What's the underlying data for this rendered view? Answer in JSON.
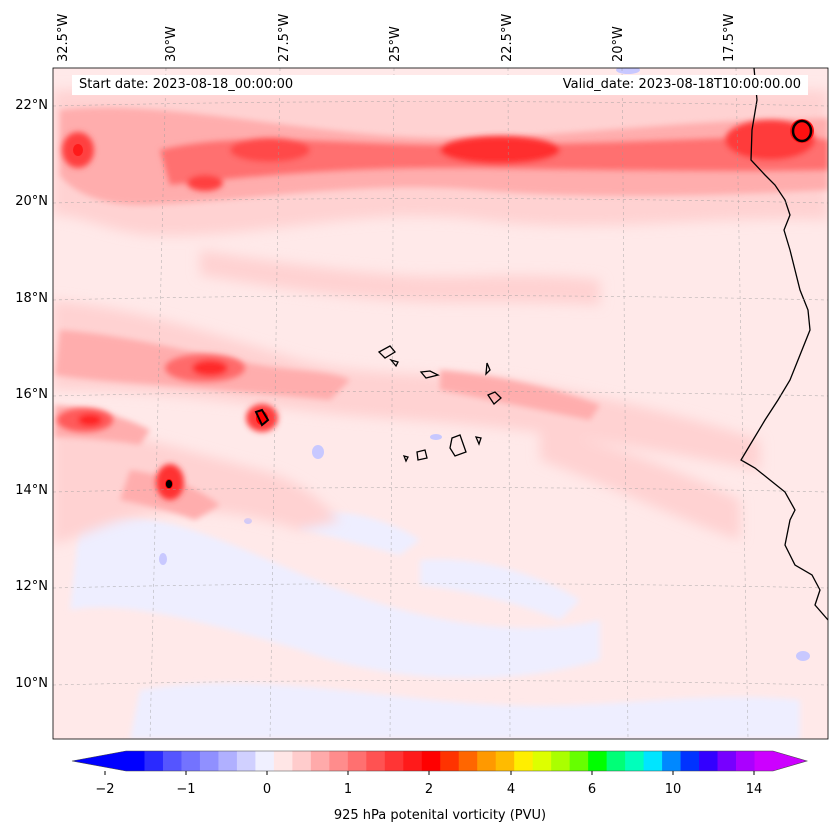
{
  "map": {
    "start_date": "Start date: 2023-08-18_00:00:00",
    "valid_date": "Valid_date: 2023-08-18T10:00:00.00",
    "lon_labels": [
      "32.5°W",
      "30°W",
      "27.5°W",
      "25°W",
      "22.5°W",
      "20°W",
      "17.5°W"
    ],
    "lat_labels": [
      "22°N",
      "20°N",
      "18°N",
      "16°N",
      "14°N",
      "12°N",
      "10°N"
    ],
    "places": [
      "Cabo Verde islands",
      "West African coastline"
    ]
  },
  "colorbar": {
    "label": "925 hPa potenital vorticity (PVU)",
    "ticks": [
      "−2",
      "−1",
      "0",
      "1",
      "2",
      "4",
      "6",
      "10",
      "14"
    ],
    "colors": [
      "#0000ff",
      "#2a2aff",
      "#5555ff",
      "#7373ff",
      "#9090ff",
      "#b0b0ff",
      "#d0d0ff",
      "#f0f0ff",
      "#ffe6e6",
      "#ffcccc",
      "#ffaaaa",
      "#ff8c8c",
      "#ff7070",
      "#ff5252",
      "#ff3535",
      "#ff1a1a",
      "#ff0000",
      "#ff3300",
      "#ff6600",
      "#ff9900",
      "#ffbb00",
      "#ffee00",
      "#ddff00",
      "#aaff00",
      "#66ff00",
      "#00ff00",
      "#00ff77",
      "#00ffbb",
      "#00e5ff",
      "#0088ff",
      "#0033ff",
      "#3300ff",
      "#7700ff",
      "#aa00ff",
      "#cc00ff"
    ],
    "extend_low_color": "#0000ff",
    "extend_high_color": "#cc00ff"
  }
}
